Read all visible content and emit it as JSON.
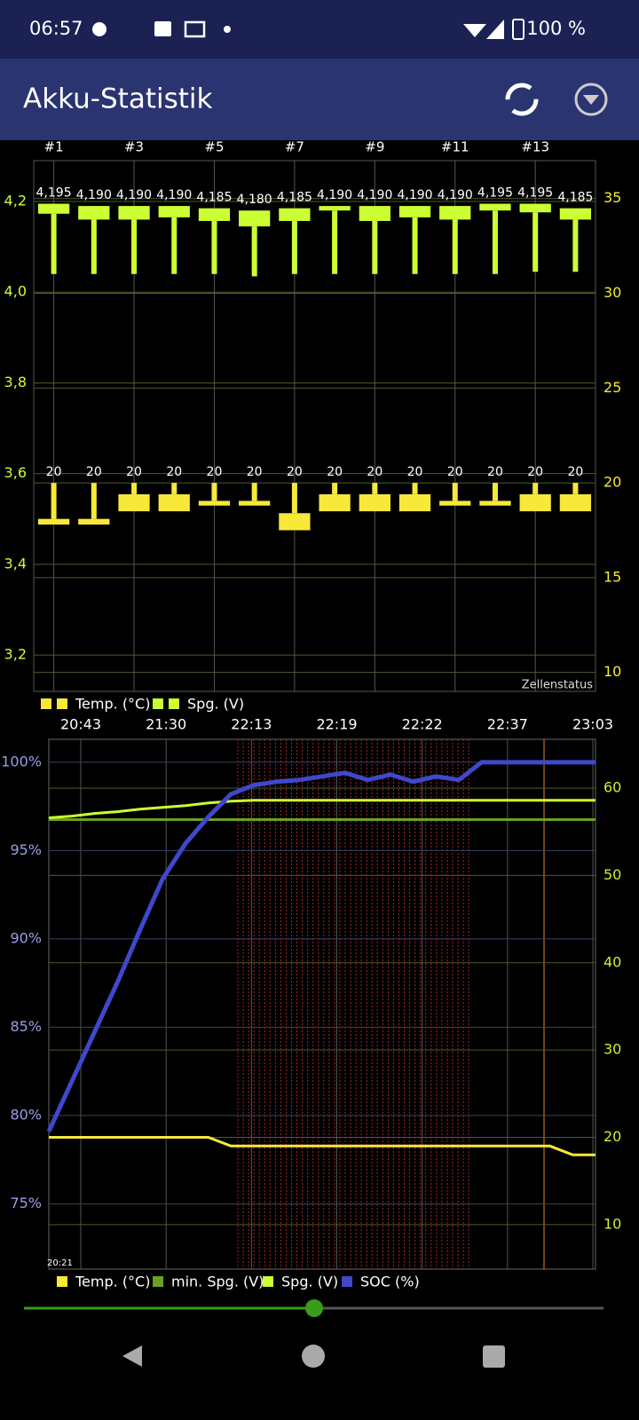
{
  "status_bar": {
    "time": "06:57",
    "battery": "100 %"
  },
  "app_bar": {
    "title": "Akku-Statistik"
  },
  "chart_data": [
    {
      "type": "candlestick",
      "categories": [
        "#1",
        null,
        "#3",
        null,
        "#5",
        null,
        "#7",
        null,
        "#9",
        null,
        "#11",
        null,
        "#13",
        null
      ],
      "ylim": [
        3.12,
        4.29
      ],
      "yticks": [
        {
          "value": 3.2,
          "label": "3,2"
        },
        {
          "value": 3.4,
          "label": "3,4"
        },
        {
          "value": 3.6,
          "label": "3,6"
        },
        {
          "value": 3.8,
          "label": "3,8"
        },
        {
          "value": 4.0,
          "label": "4,0"
        },
        {
          "value": 4.2,
          "label": "4,2"
        }
      ],
      "y2lim": [
        9,
        37
      ],
      "y2ticks": [
        10,
        15,
        20,
        25,
        30,
        35
      ],
      "grid": true,
      "annotation": "Zellenstatus",
      "legend": "bottom-left",
      "series": [
        {
          "name": "Temp. (°C)",
          "color": "#f7e83a",
          "axis": "y2",
          "values": [
            20,
            20,
            20,
            20,
            20,
            20,
            20,
            20,
            20,
            20,
            20,
            20,
            20,
            20
          ],
          "box_top": [
            18.1,
            18.1,
            19.4,
            19.4,
            19.05,
            19.05,
            18.4,
            19.4,
            19.4,
            19.4,
            19.05,
            19.05,
            19.4,
            19.4
          ],
          "box_bottom": [
            17.8,
            17.8,
            18.5,
            18.5,
            18.8,
            18.8,
            17.5,
            18.5,
            18.5,
            18.5,
            18.8,
            18.8,
            18.5,
            18.5
          ]
        },
        {
          "name": "Spg. (V)",
          "color": "#ccff33",
          "values": [
            4.195,
            4.19,
            4.19,
            4.19,
            4.185,
            4.18,
            4.185,
            4.19,
            4.19,
            4.19,
            4.19,
            4.195,
            4.195,
            4.185
          ],
          "value_labels": [
            "4,195",
            "4,190",
            "4,190",
            "4,190",
            "4,185",
            "4,180",
            "4,185",
            "4,190",
            "4,190",
            "4,190",
            "4,190",
            "4,195",
            "4,195",
            "4,185"
          ],
          "box_bottom": [
            4.173,
            4.16,
            4.16,
            4.165,
            4.157,
            4.145,
            4.157,
            4.18,
            4.157,
            4.165,
            4.16,
            4.18,
            4.176,
            4.16
          ],
          "whisker_low": [
            4.04,
            4.04,
            4.04,
            4.04,
            4.04,
            4.035,
            4.04,
            4.04,
            4.04,
            4.04,
            4.04,
            4.04,
            4.045,
            4.045
          ]
        }
      ]
    },
    {
      "type": "line",
      "x_labels": [
        "20:43",
        "21:30",
        "22:13",
        "22:19",
        "22:22",
        "22:37",
        "23:03"
      ],
      "corner_label": "20:21",
      "ylim": [
        71.3,
        101.3
      ],
      "yticks": [
        {
          "value": 75,
          "label": "75%"
        },
        {
          "value": 80,
          "label": "80%"
        },
        {
          "value": 85,
          "label": "85%"
        },
        {
          "value": 90,
          "label": "90%"
        },
        {
          "value": 95,
          "label": "95%"
        },
        {
          "value": 100,
          "label": "100%"
        }
      ],
      "y2lim": [
        4.9,
        65.6
      ],
      "y2ticks": [
        10,
        20,
        30,
        40,
        50,
        60
      ],
      "grid": true,
      "legend": "bottom-left",
      "series": [
        {
          "name": "Temp. (°C)",
          "color": "#f7e83a",
          "axis": "y2",
          "values": [
            20,
            20,
            20,
            20,
            20,
            20,
            20,
            20,
            19,
            19,
            19,
            19,
            19,
            19,
            19,
            19,
            19,
            19,
            19,
            19,
            19,
            19,
            19,
            18,
            18
          ]
        },
        {
          "name": "min. Spg. (V)",
          "color": "#6aa121",
          "axis": "y2",
          "values": [
            56.4,
            56.4,
            56.4,
            56.4,
            56.4,
            56.4,
            56.4,
            56.4,
            56.4,
            56.4,
            56.4,
            56.4,
            56.4,
            56.4,
            56.4,
            56.4,
            56.4,
            56.4,
            56.4,
            56.4,
            56.4,
            56.4,
            56.4,
            56.4,
            56.4
          ]
        },
        {
          "name": "Spg. (V)",
          "color": "#ccff33",
          "axis": "y2",
          "values": [
            56.6,
            56.8,
            57.1,
            57.3,
            57.6,
            57.8,
            58.0,
            58.3,
            58.5,
            58.6,
            58.6,
            58.6,
            58.6,
            58.6,
            58.6,
            58.6,
            58.6,
            58.6,
            58.6,
            58.6,
            58.6,
            58.6,
            58.6,
            58.6,
            58.6
          ]
        },
        {
          "name": "SOC (%)",
          "color": "#3f48cc",
          "values": [
            79.1,
            81.9,
            84.7,
            87.5,
            90.5,
            93.4,
            95.4,
            96.9,
            98.2,
            98.7,
            98.9,
            99.0,
            99.2,
            99.4,
            99.0,
            99.3,
            98.9,
            99.2,
            99.0,
            100,
            100,
            100,
            100,
            100,
            100
          ]
        }
      ]
    }
  ]
}
